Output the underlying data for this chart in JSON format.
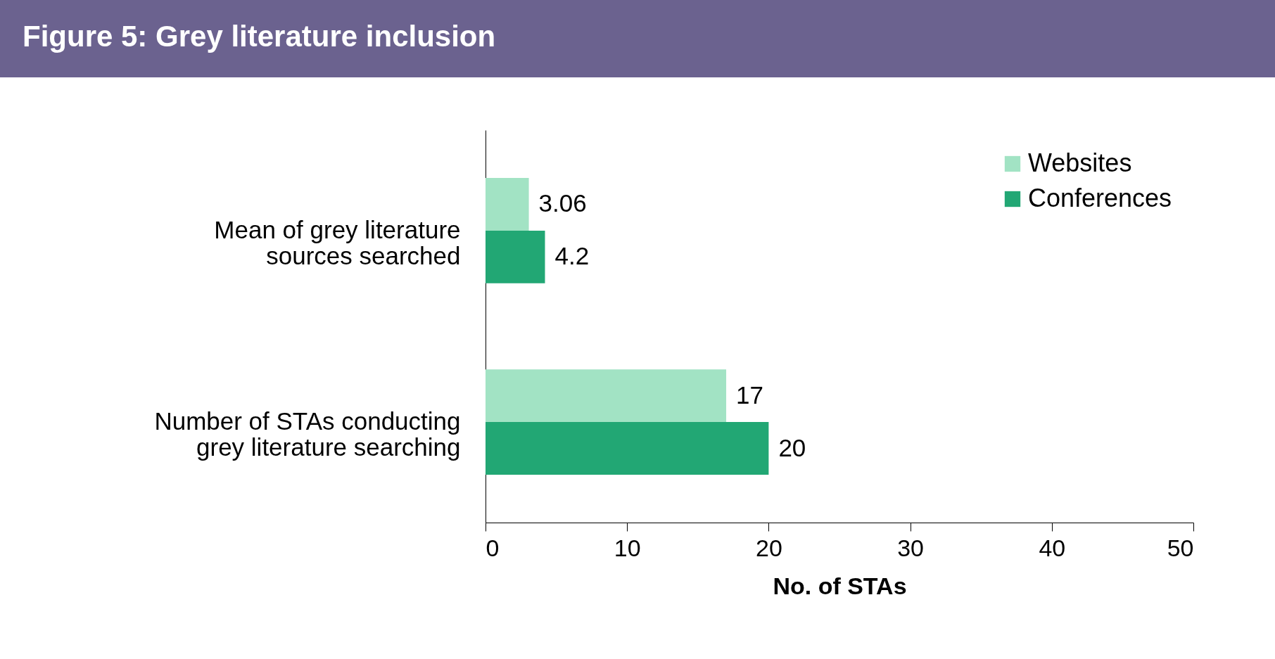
{
  "chart_data": {
    "type": "bar",
    "orientation": "horizontal",
    "title": "Figure 5: Grey literature inclusion",
    "xlabel": "No. of STAs",
    "categories": [
      "Mean of grey literature sources searched",
      "Number of STAs conducting grey literature searching"
    ],
    "series": [
      {
        "name": "Websites",
        "color": "#a2e3c4",
        "values": [
          3.06,
          17
        ]
      },
      {
        "name": "Conferences",
        "color": "#22a774",
        "values": [
          4.2,
          20
        ]
      }
    ],
    "xlim": [
      0,
      50
    ],
    "xticks": [
      0,
      10,
      20,
      30,
      40,
      50
    ],
    "data_labels": true,
    "legend": "top right",
    "grid": false
  }
}
